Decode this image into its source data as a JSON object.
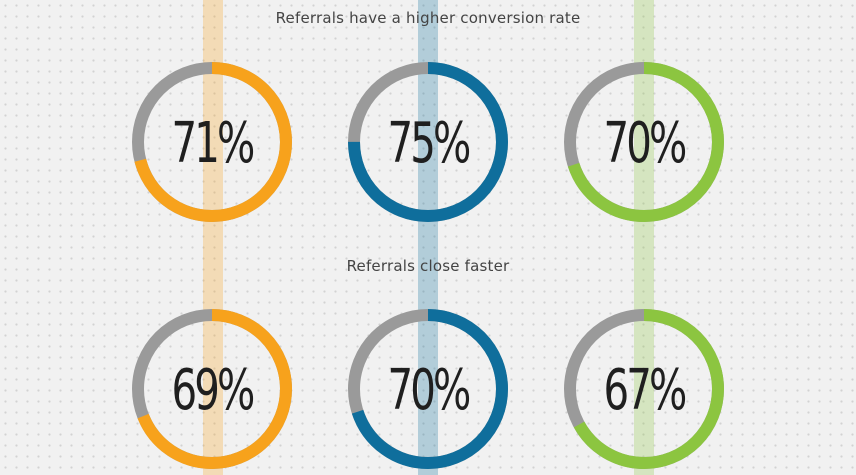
{
  "colors": {
    "track": "#9a9a9a",
    "orange": "#f7a21c",
    "blue": "#0f6e9c",
    "green": "#8cc540",
    "text": "#1f1f1f"
  },
  "chart_data": [
    {
      "type": "donut",
      "title": "Referrals have a higher conversion rate",
      "series": [
        {
          "value": 71,
          "label": "71%",
          "color": "#f7a21c"
        },
        {
          "value": 75,
          "label": "75%",
          "color": "#0f6e9c"
        },
        {
          "value": 70,
          "label": "70%",
          "color": "#8cc540"
        }
      ]
    },
    {
      "type": "donut",
      "title": "Referrals close faster",
      "series": [
        {
          "value": 69,
          "label": "69%",
          "color": "#f7a21c"
        },
        {
          "value": 70,
          "label": "70%",
          "color": "#0f6e9c"
        },
        {
          "value": 67,
          "label": "67%",
          "color": "#8cc540"
        }
      ]
    }
  ]
}
